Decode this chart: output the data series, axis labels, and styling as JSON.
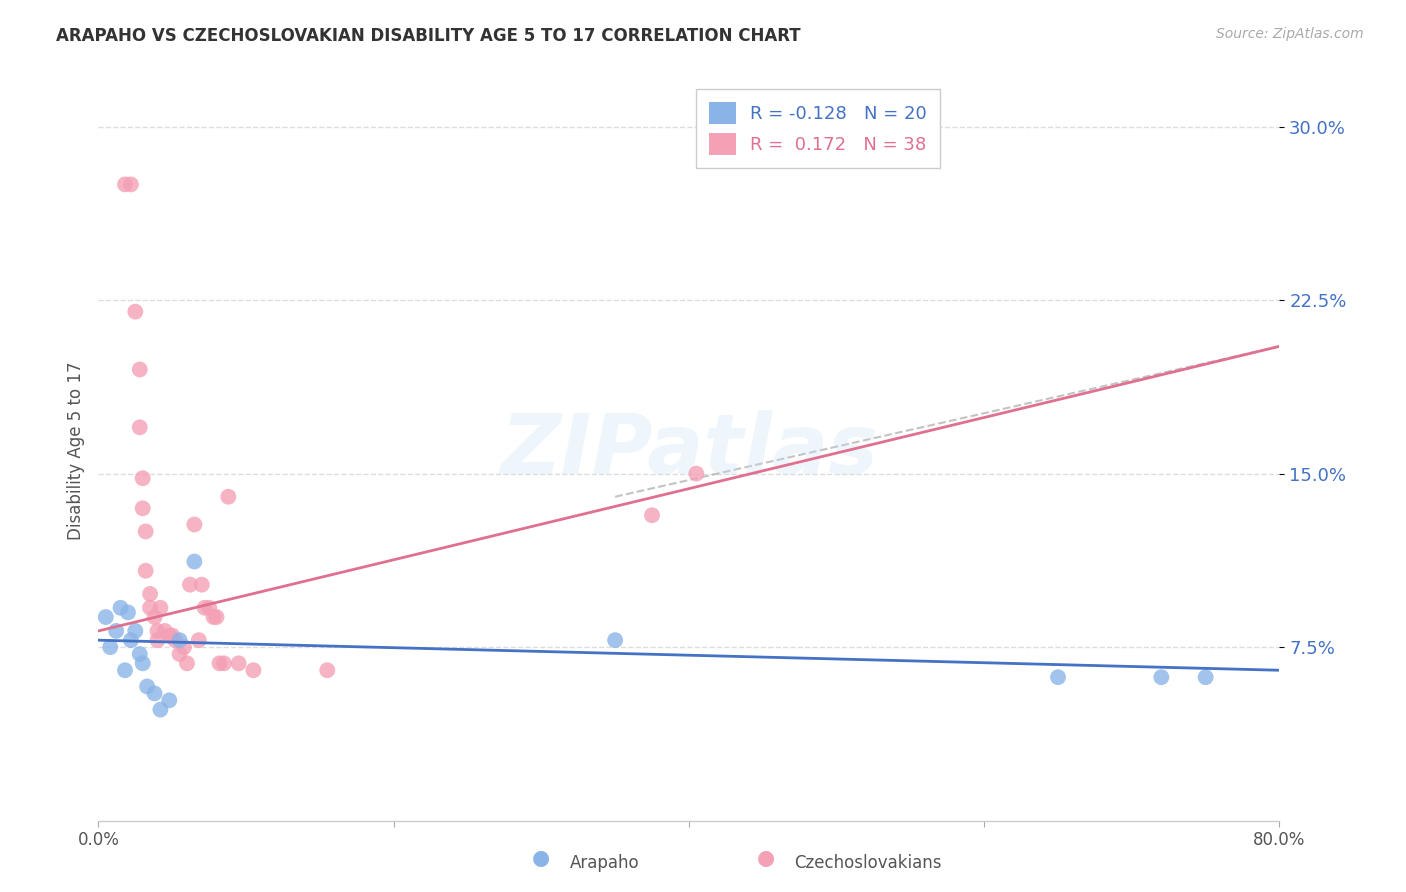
{
  "title": "ARAPAHO VS CZECHOSLOVAKIAN DISABILITY AGE 5 TO 17 CORRELATION CHART",
  "source": "Source: ZipAtlas.com",
  "ylabel": "Disability Age 5 to 17",
  "xlim": [
    0.0,
    0.8
  ],
  "ylim": [
    0.0,
    0.32
  ],
  "yticks": [
    0.075,
    0.15,
    0.225,
    0.3
  ],
  "ytick_labels": [
    "7.5%",
    "15.0%",
    "22.5%",
    "30.0%"
  ],
  "arapaho_color": "#8ab4e8",
  "czechoslovakian_color": "#f4a0b5",
  "arapaho_r": "-0.128",
  "arapaho_n": "20",
  "czechoslovakian_r": "0.172",
  "czechoslovakian_n": "38",
  "arapaho_line_color": "#4472c4",
  "czechoslovakian_line_color": "#e07090",
  "arapaho_points_x": [
    0.005,
    0.008,
    0.012,
    0.015,
    0.018,
    0.02,
    0.022,
    0.025,
    0.028,
    0.03,
    0.033,
    0.038,
    0.042,
    0.048,
    0.055,
    0.065,
    0.35,
    0.65,
    0.72,
    0.75
  ],
  "arapaho_points_y": [
    0.088,
    0.075,
    0.082,
    0.092,
    0.065,
    0.09,
    0.078,
    0.082,
    0.072,
    0.068,
    0.058,
    0.055,
    0.048,
    0.052,
    0.078,
    0.112,
    0.078,
    0.062,
    0.062,
    0.062
  ],
  "czechoslovakian_points_x": [
    0.018,
    0.022,
    0.025,
    0.028,
    0.028,
    0.03,
    0.03,
    0.032,
    0.032,
    0.035,
    0.035,
    0.038,
    0.04,
    0.04,
    0.042,
    0.045,
    0.048,
    0.05,
    0.052,
    0.055,
    0.058,
    0.06,
    0.062,
    0.065,
    0.068,
    0.07,
    0.072,
    0.075,
    0.078,
    0.08,
    0.082,
    0.085,
    0.088,
    0.095,
    0.105,
    0.155,
    0.375,
    0.405
  ],
  "czechoslovakian_points_y": [
    0.275,
    0.275,
    0.22,
    0.195,
    0.17,
    0.148,
    0.135,
    0.125,
    0.108,
    0.098,
    0.092,
    0.088,
    0.082,
    0.078,
    0.092,
    0.082,
    0.08,
    0.08,
    0.078,
    0.072,
    0.075,
    0.068,
    0.102,
    0.128,
    0.078,
    0.102,
    0.092,
    0.092,
    0.088,
    0.088,
    0.068,
    0.068,
    0.14,
    0.068,
    0.065,
    0.065,
    0.132,
    0.15
  ],
  "watermark_text": "ZIPatlas",
  "background_color": "#ffffff",
  "grid_color": "#dddddd",
  "czecho_line_x0": 0.0,
  "czecho_line_y0": 0.082,
  "czecho_line_x1": 0.8,
  "czecho_line_y1": 0.205,
  "arapaho_line_x0": 0.0,
  "arapaho_line_y0": 0.078,
  "arapaho_line_x1": 0.8,
  "arapaho_line_y1": 0.065
}
